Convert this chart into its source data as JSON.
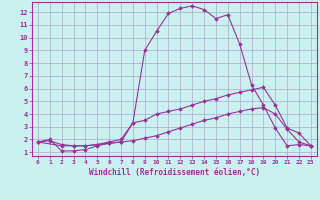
{
  "xlabel": "Windchill (Refroidissement éolien,°C)",
  "background_color": "#caf0f0",
  "grid_color": "#aaaacc",
  "line_color": "#993399",
  "xlim": [
    -0.5,
    23.5
  ],
  "ylim": [
    0.7,
    12.8
  ],
  "xticks": [
    0,
    1,
    2,
    3,
    4,
    5,
    6,
    7,
    8,
    9,
    10,
    11,
    12,
    13,
    14,
    15,
    16,
    17,
    18,
    19,
    20,
    21,
    22,
    23
  ],
  "yticks": [
    1,
    2,
    3,
    4,
    5,
    6,
    7,
    8,
    9,
    10,
    11,
    12
  ],
  "line1_x": [
    0,
    1,
    2,
    3,
    4,
    5,
    6,
    7,
    8,
    9,
    10,
    11,
    12,
    13,
    14,
    15,
    16,
    17,
    18,
    19,
    20,
    21,
    22,
    23
  ],
  "line1_y": [
    1.8,
    2.0,
    1.1,
    1.1,
    1.2,
    1.5,
    1.7,
    1.8,
    3.3,
    9.0,
    10.5,
    11.9,
    12.3,
    12.5,
    12.2,
    11.5,
    11.8,
    9.5,
    6.3,
    4.7,
    2.9,
    1.5,
    1.6,
    1.5
  ],
  "line2_x": [
    0,
    2,
    3,
    4,
    5,
    6,
    7,
    8,
    9,
    10,
    11,
    12,
    13,
    14,
    15,
    16,
    17,
    18,
    19,
    20,
    21,
    22,
    23
  ],
  "line2_y": [
    1.8,
    1.5,
    1.5,
    1.5,
    1.6,
    1.8,
    2.0,
    3.3,
    3.5,
    4.0,
    4.2,
    4.4,
    4.7,
    5.0,
    5.2,
    5.5,
    5.7,
    5.9,
    6.1,
    4.7,
    2.9,
    2.5,
    1.5
  ],
  "line3_x": [
    0,
    1,
    2,
    3,
    4,
    5,
    6,
    7,
    8,
    9,
    10,
    11,
    12,
    13,
    14,
    15,
    16,
    17,
    18,
    19,
    20,
    21,
    22,
    23
  ],
  "line3_y": [
    1.8,
    1.9,
    1.6,
    1.5,
    1.5,
    1.6,
    1.7,
    1.8,
    1.9,
    2.1,
    2.3,
    2.6,
    2.9,
    3.2,
    3.5,
    3.7,
    4.0,
    4.2,
    4.4,
    4.5,
    4.0,
    2.8,
    1.8,
    1.5
  ]
}
